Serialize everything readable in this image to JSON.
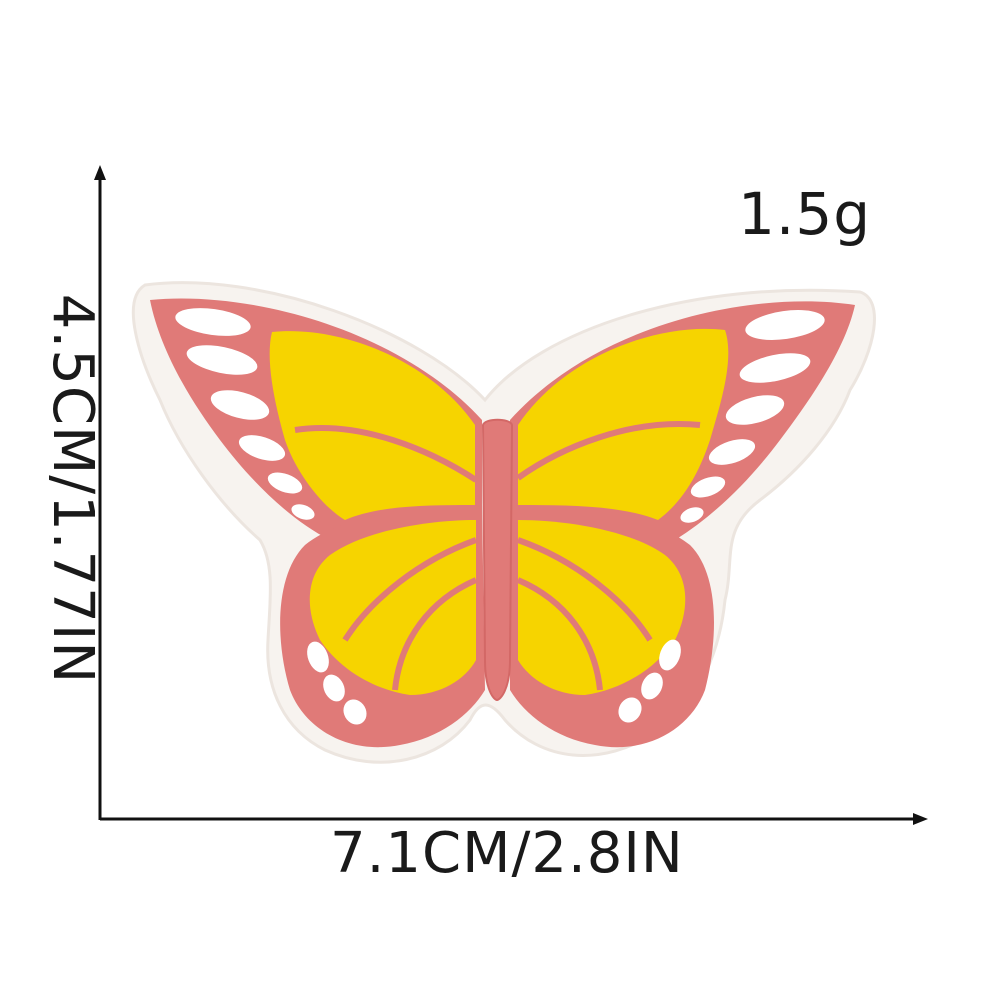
{
  "measurements": {
    "weight": "1.5g",
    "height": "4.5CM/1.77IN",
    "width": "7.1CM/2.8IN"
  },
  "colors": {
    "background": "#ffffff",
    "axis": "#111111",
    "patch_backing": "#f7f3ef",
    "wing_border": "#e07a78",
    "wing_fill": "#f6d400",
    "wing_spots": "#ffffff",
    "text": "#1a1a1a"
  },
  "icons": {
    "product": "butterfly-patch-icon"
  }
}
